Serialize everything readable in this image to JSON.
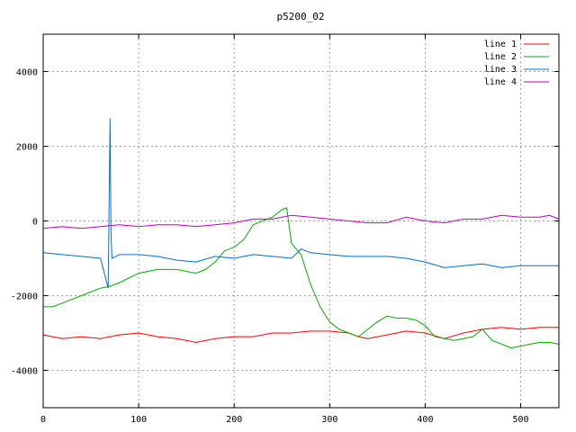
{
  "chart_data": {
    "type": "line",
    "title": "p5200_02",
    "xlabel": "",
    "ylabel": "",
    "xlim": [
      0,
      540
    ],
    "ylim": [
      -5000,
      5000
    ],
    "xticks": [
      0,
      100,
      200,
      300,
      400,
      500
    ],
    "yticks": [
      -4000,
      -2000,
      0,
      2000,
      4000
    ],
    "grid": true,
    "legend_position": "top-right",
    "series": [
      {
        "name": "line 1",
        "color": "#ff0000",
        "points": [
          [
            0,
            -3050
          ],
          [
            20,
            -3150
          ],
          [
            40,
            -3100
          ],
          [
            60,
            -3150
          ],
          [
            80,
            -3050
          ],
          [
            100,
            -3000
          ],
          [
            120,
            -3100
          ],
          [
            140,
            -3150
          ],
          [
            160,
            -3250
          ],
          [
            180,
            -3150
          ],
          [
            200,
            -3100
          ],
          [
            220,
            -3100
          ],
          [
            240,
            -3000
          ],
          [
            260,
            -3000
          ],
          [
            280,
            -2950
          ],
          [
            300,
            -2950
          ],
          [
            320,
            -3000
          ],
          [
            330,
            -3100
          ],
          [
            340,
            -3150
          ],
          [
            360,
            -3050
          ],
          [
            380,
            -2950
          ],
          [
            400,
            -3000
          ],
          [
            420,
            -3150
          ],
          [
            440,
            -3000
          ],
          [
            460,
            -2900
          ],
          [
            480,
            -2850
          ],
          [
            500,
            -2900
          ],
          [
            520,
            -2850
          ],
          [
            540,
            -2850
          ]
        ]
      },
      {
        "name": "line 2",
        "color": "#00b000",
        "points": [
          [
            0,
            -2300
          ],
          [
            10,
            -2300
          ],
          [
            20,
            -2200
          ],
          [
            40,
            -2000
          ],
          [
            60,
            -1800
          ],
          [
            70,
            -1750
          ],
          [
            80,
            -1650
          ],
          [
            100,
            -1400
          ],
          [
            120,
            -1300
          ],
          [
            140,
            -1300
          ],
          [
            160,
            -1400
          ],
          [
            170,
            -1300
          ],
          [
            180,
            -1100
          ],
          [
            190,
            -800
          ],
          [
            200,
            -700
          ],
          [
            210,
            -500
          ],
          [
            220,
            -100
          ],
          [
            240,
            100
          ],
          [
            250,
            300
          ],
          [
            255,
            350
          ],
          [
            260,
            -600
          ],
          [
            270,
            -900
          ],
          [
            280,
            -1700
          ],
          [
            290,
            -2300
          ],
          [
            300,
            -2700
          ],
          [
            310,
            -2900
          ],
          [
            320,
            -3000
          ],
          [
            330,
            -3100
          ],
          [
            340,
            -2900
          ],
          [
            350,
            -2700
          ],
          [
            360,
            -2550
          ],
          [
            370,
            -2600
          ],
          [
            380,
            -2600
          ],
          [
            390,
            -2650
          ],
          [
            400,
            -2800
          ],
          [
            410,
            -3100
          ],
          [
            420,
            -3150
          ],
          [
            430,
            -3200
          ],
          [
            440,
            -3150
          ],
          [
            450,
            -3100
          ],
          [
            460,
            -2900
          ],
          [
            470,
            -3200
          ],
          [
            480,
            -3300
          ],
          [
            490,
            -3400
          ],
          [
            500,
            -3350
          ],
          [
            510,
            -3300
          ],
          [
            520,
            -3250
          ],
          [
            530,
            -3250
          ],
          [
            540,
            -3300
          ]
        ]
      },
      {
        "name": "line 3",
        "color": "#0070d0",
        "points": [
          [
            0,
            -850
          ],
          [
            20,
            -900
          ],
          [
            40,
            -950
          ],
          [
            60,
            -1000
          ],
          [
            68,
            -1800
          ],
          [
            70,
            2750
          ],
          [
            71,
            -300
          ],
          [
            72,
            -1000
          ],
          [
            80,
            -900
          ],
          [
            100,
            -900
          ],
          [
            120,
            -950
          ],
          [
            140,
            -1050
          ],
          [
            160,
            -1100
          ],
          [
            180,
            -950
          ],
          [
            200,
            -1000
          ],
          [
            220,
            -900
          ],
          [
            240,
            -950
          ],
          [
            260,
            -1000
          ],
          [
            270,
            -750
          ],
          [
            280,
            -850
          ],
          [
            300,
            -900
          ],
          [
            320,
            -950
          ],
          [
            340,
            -950
          ],
          [
            360,
            -950
          ],
          [
            380,
            -1000
          ],
          [
            400,
            -1100
          ],
          [
            420,
            -1250
          ],
          [
            440,
            -1200
          ],
          [
            460,
            -1150
          ],
          [
            480,
            -1250
          ],
          [
            500,
            -1200
          ],
          [
            520,
            -1200
          ],
          [
            540,
            -1200
          ]
        ]
      },
      {
        "name": "line 4",
        "color": "#c000c0",
        "points": [
          [
            0,
            -200
          ],
          [
            20,
            -150
          ],
          [
            40,
            -200
          ],
          [
            60,
            -150
          ],
          [
            80,
            -100
          ],
          [
            100,
            -150
          ],
          [
            120,
            -100
          ],
          [
            140,
            -100
          ],
          [
            160,
            -150
          ],
          [
            180,
            -100
          ],
          [
            200,
            -50
          ],
          [
            220,
            50
          ],
          [
            240,
            50
          ],
          [
            260,
            150
          ],
          [
            280,
            100
          ],
          [
            300,
            50
          ],
          [
            320,
            0
          ],
          [
            340,
            -50
          ],
          [
            360,
            -50
          ],
          [
            380,
            100
          ],
          [
            400,
            0
          ],
          [
            420,
            -50
          ],
          [
            440,
            50
          ],
          [
            460,
            50
          ],
          [
            480,
            150
          ],
          [
            500,
            100
          ],
          [
            520,
            100
          ],
          [
            530,
            150
          ],
          [
            540,
            50
          ]
        ]
      }
    ]
  }
}
